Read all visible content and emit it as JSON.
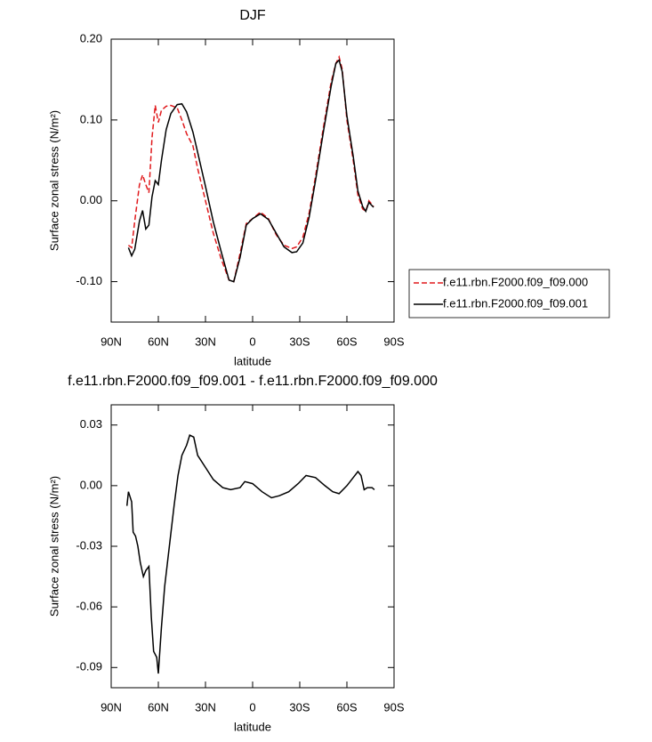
{
  "chart_data": [
    {
      "type": "line",
      "title": "DJF",
      "x": [
        79,
        77,
        75,
        72,
        70,
        68,
        66,
        64,
        62,
        60,
        58,
        55,
        52,
        48,
        45,
        42,
        38,
        35,
        30,
        25,
        20,
        15,
        12,
        8,
        4,
        0,
        -5,
        -10,
        -15,
        -20,
        -25,
        -28,
        -32,
        -36,
        -40,
        -45,
        -50,
        -53,
        -55,
        -57,
        -60,
        -64,
        -67,
        -70,
        -72,
        -74,
        -77
      ],
      "series": [
        {
          "name": "f.e11.rbn.F2000.f09_f09.000",
          "color": "#e0191c",
          "dash": true,
          "values": [
            -0.055,
            -0.058,
            -0.025,
            0.02,
            0.032,
            0.02,
            0.01,
            0.078,
            0.118,
            0.097,
            0.112,
            0.117,
            0.118,
            0.115,
            0.1,
            0.083,
            0.068,
            0.04,
            0.0,
            -0.04,
            -0.072,
            -0.098,
            -0.1,
            -0.065,
            -0.028,
            -0.022,
            -0.014,
            -0.022,
            -0.042,
            -0.055,
            -0.059,
            -0.057,
            -0.045,
            -0.015,
            0.03,
            0.09,
            0.147,
            0.17,
            0.178,
            0.163,
            0.1,
            0.05,
            0.007,
            -0.01,
            -0.013,
            0,
            -0.007
          ]
        },
        {
          "name": "f.e11.rbn.F2000.f09_f09.001",
          "color": "#000000",
          "dash": false,
          "values": [
            -0.058,
            -0.068,
            -0.06,
            -0.025,
            -0.012,
            -0.035,
            -0.03,
            0.005,
            0.025,
            0.02,
            0.05,
            0.088,
            0.108,
            0.119,
            0.12,
            0.11,
            0.085,
            0.06,
            0.018,
            -0.026,
            -0.063,
            -0.098,
            -0.1,
            -0.07,
            -0.03,
            -0.022,
            -0.016,
            -0.023,
            -0.04,
            -0.057,
            -0.064,
            -0.063,
            -0.052,
            -0.02,
            0.025,
            0.085,
            0.142,
            0.17,
            0.174,
            0.16,
            0.105,
            0.055,
            0.012,
            -0.007,
            -0.013,
            -0.002,
            -0.008
          ]
        }
      ],
      "xlim": [
        90,
        -90
      ],
      "xticks": [
        {
          "value": 90,
          "label": "90N"
        },
        {
          "value": 60,
          "label": "60N"
        },
        {
          "value": 30,
          "label": "30N"
        },
        0,
        {
          "value": -30,
          "label": "30S"
        },
        {
          "value": -60,
          "label": "60S"
        },
        {
          "value": -90,
          "label": "90S"
        }
      ],
      "ylim": [
        -0.15,
        0.2
      ],
      "yticks": [
        {
          "value": 0.2,
          "label": "0.20"
        },
        {
          "value": 0.1,
          "label": "0.10"
        },
        {
          "value": 0,
          "label": "0.00"
        },
        {
          "value": -0.1,
          "label": "-0.10"
        }
      ],
      "xlabel": "latitude",
      "ylabel": "Surface zonal stress (N/m²)",
      "legend": "right"
    },
    {
      "type": "line",
      "title": "f.e11.rbn.F2000.f09_f09.001 - f.e11.rbn.F2000.f09_f09.000",
      "x": [
        80,
        79,
        77,
        76,
        74.5,
        73,
        71.5,
        69.5,
        68,
        66,
        64.5,
        63,
        61,
        60,
        58,
        56,
        53,
        50,
        47.5,
        45,
        42,
        40,
        37.5,
        35,
        30,
        25,
        19,
        14,
        8,
        5,
        0,
        -6,
        -12,
        -17,
        -23,
        -29,
        -34,
        -40,
        -46,
        -51,
        -55,
        -60,
        -64,
        -67,
        -69,
        -71,
        -73,
        -76,
        -77.5
      ],
      "values": [
        -0.01,
        -0.003,
        -0.008,
        -0.023,
        -0.025,
        -0.03,
        -0.038,
        -0.045,
        -0.042,
        -0.04,
        -0.065,
        -0.082,
        -0.085,
        -0.093,
        -0.07,
        -0.05,
        -0.03,
        -0.01,
        0.005,
        0.015,
        0.02,
        0.025,
        0.024,
        0.015,
        0.009,
        0.003,
        -0.001,
        -0.002,
        -0.001,
        0.002,
        0.001,
        -0.003,
        -0.006,
        -0.005,
        -0.003,
        0.001,
        0.005,
        0.004,
        0.0,
        -0.003,
        -0.004,
        0.0,
        0.004,
        0.007,
        0.005,
        -0.002,
        -0.001,
        -0.001,
        -0.002
      ],
      "color": "#000000",
      "xlim": [
        90,
        -90
      ],
      "xticks": [
        {
          "value": 90,
          "label": "90N"
        },
        {
          "value": 60,
          "label": "60N"
        },
        {
          "value": 30,
          "label": "30N"
        },
        0,
        {
          "value": -30,
          "label": "30S"
        },
        {
          "value": -60,
          "label": "60S"
        },
        {
          "value": -90,
          "label": "90S"
        }
      ],
      "ylim": [
        -0.1,
        0.04
      ],
      "yticks": [
        0.03,
        {
          "value": 0,
          "label": "0.00"
        },
        -0.03,
        -0.06,
        -0.09
      ],
      "xlabel": "latitude",
      "ylabel": "Surface zonal stress (N/m²)"
    }
  ]
}
